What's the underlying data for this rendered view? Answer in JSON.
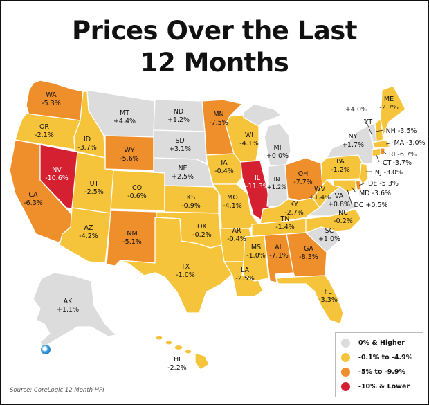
{
  "title_line1": "Prices Over the Last",
  "title_line2": "12 Months",
  "source": "Source: CoreLogic 12 Month HPI",
  "colors": {
    "positive": "#dcdcdc",
    "small_decline": "#f5c43a",
    "medium_decline": "#ee8f2c",
    "large_decline": "#d42030"
  },
  "legend": [
    {
      "label": "0% & Higher",
      "color": "#dcdcdc"
    },
    {
      "label": "-0.1% to -4.9%",
      "color": "#f5c43a"
    },
    {
      "label": "-5% to -9.9%",
      "color": "#ee8f2c"
    },
    {
      "label": "-10% & Lower",
      "color": "#d42030"
    }
  ],
  "states": {
    "WA": {
      "abbr": "WA",
      "value": "-5.3%"
    },
    "OR": {
      "abbr": "OR",
      "value": "-2.1%"
    },
    "CA": {
      "abbr": "CA",
      "value": "-6.3%"
    },
    "NV": {
      "abbr": "NV",
      "value": "-10.6%"
    },
    "ID": {
      "abbr": "ID",
      "value": "-3.7%"
    },
    "MT": {
      "abbr": "MT",
      "value": "+4.4%"
    },
    "WY": {
      "abbr": "WY",
      "value": "-5.6%"
    },
    "UT": {
      "abbr": "UT",
      "value": "-2.5%"
    },
    "AZ": {
      "abbr": "AZ",
      "value": "-4.2%"
    },
    "CO": {
      "abbr": "CO",
      "value": "-0.6%"
    },
    "NM": {
      "abbr": "NM",
      "value": "-5.1%"
    },
    "ND": {
      "abbr": "ND",
      "value": "+1.2%"
    },
    "SD": {
      "abbr": "SD",
      "value": "+3.1%"
    },
    "NE": {
      "abbr": "NE",
      "value": "+2.5%"
    },
    "KS": {
      "abbr": "KS",
      "value": "-0.9%"
    },
    "OK": {
      "abbr": "OK",
      "value": "-0.2%"
    },
    "TX": {
      "abbr": "TX",
      "value": "-1.0%"
    },
    "MN": {
      "abbr": "MN",
      "value": "-7.5%"
    },
    "IA": {
      "abbr": "IA",
      "value": "-0.4%"
    },
    "MO": {
      "abbr": "MO",
      "value": "-4.1%"
    },
    "AR": {
      "abbr": "AR",
      "value": "-0.4%"
    },
    "LA": {
      "abbr": "LA",
      "value": "-2.5%"
    },
    "WI": {
      "abbr": "WI",
      "value": "-4.1%"
    },
    "IL": {
      "abbr": "IL",
      "value": "-11.3%"
    },
    "MI": {
      "abbr": "MI",
      "value": "+0.0%"
    },
    "IN": {
      "abbr": "IN",
      "value": "+1.2%"
    },
    "OH": {
      "abbr": "OH",
      "value": "-7.7%"
    },
    "KY": {
      "abbr": "KY",
      "value": "-2.7%"
    },
    "TN": {
      "abbr": "TN",
      "value": "-1.4%"
    },
    "MS": {
      "abbr": "MS",
      "value": "-1.0%"
    },
    "AL": {
      "abbr": "AL",
      "value": "-7.1%"
    },
    "GA": {
      "abbr": "GA",
      "value": "-8.3%"
    },
    "FL": {
      "abbr": "FL",
      "value": "-3.3%"
    },
    "SC": {
      "abbr": "SC",
      "value": "+1.0%"
    },
    "NC": {
      "abbr": "NC",
      "value": "-0.2%"
    },
    "VA": {
      "abbr": "VA",
      "value": "+0.8%"
    },
    "WV": {
      "abbr": "WV",
      "value": "+1.4%"
    },
    "PA": {
      "abbr": "PA",
      "value": "-1.2%"
    },
    "NY": {
      "abbr": "NY",
      "value": "+1.7%"
    },
    "VT": {
      "abbr": "VT",
      "value": "+4.0%"
    },
    "ME": {
      "abbr": "ME",
      "value": "-2.7%"
    },
    "NH": {
      "abbr": "NH",
      "value": "-3.5%"
    },
    "MA": {
      "abbr": "MA",
      "value": "-3.0%"
    },
    "RI": {
      "abbr": "RI",
      "value": "-6.7%"
    },
    "CT": {
      "abbr": "CT",
      "value": "-3.7%"
    },
    "NJ": {
      "abbr": "NJ",
      "value": "-3.0%"
    },
    "DE": {
      "abbr": "DE",
      "value": "-5.3%"
    },
    "MD": {
      "abbr": "MD",
      "value": "-3.6%"
    },
    "DC": {
      "abbr": "DC",
      "value": "+0.5%"
    },
    "AK": {
      "abbr": "AK",
      "value": "+1.1%"
    },
    "HI": {
      "abbr": "HI",
      "value": "-2.2%"
    }
  }
}
